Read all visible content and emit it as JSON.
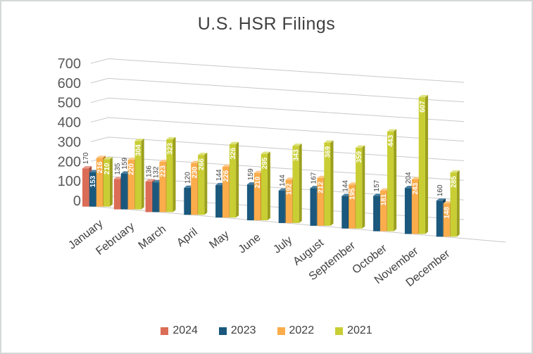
{
  "chart_data": {
    "type": "bar",
    "variant": "3d-clustered-column",
    "title": "U.S. HSR Filings",
    "categories": [
      "January",
      "February",
      "March",
      "April",
      "May",
      "June",
      "July",
      "August",
      "September",
      "October",
      "November",
      "December"
    ],
    "series": [
      {
        "name": "2024",
        "color": "#DB6C56",
        "color_dark": "#A74C3B",
        "color_light": "#E79C8B",
        "values": [
          170,
          135,
          136,
          null,
          null,
          null,
          null,
          null,
          null,
          null,
          null,
          null
        ]
      },
      {
        "name": "2023",
        "color": "#1A587D",
        "color_dark": "#123F5B",
        "color_light": "#4C81A0",
        "values": [
          153,
          159,
          132,
          120,
          144,
          159,
          144,
          167,
          144,
          157,
          204,
          160
        ]
      },
      {
        "name": "2022",
        "color": "#FBAC4B",
        "color_dark": "#C07A22",
        "color_light": "#FDC98A",
        "values": [
          216,
          220,
          223,
          230,
          226,
          210,
          192,
          212,
          195,
          181,
          243,
          148
        ]
      },
      {
        "name": "2021",
        "color": "#C8CE33",
        "color_dark": "#9B9F1E",
        "color_light": "#DEE27E",
        "values": [
          210,
          304,
          323,
          266,
          326,
          295,
          343,
          369,
          359,
          443,
          607,
          285
        ]
      }
    ],
    "y_axis": {
      "min": 0,
      "max": 700,
      "step": 100,
      "tick_labels": [
        "0",
        "100",
        "200",
        "300",
        "400",
        "500",
        "600",
        "700"
      ]
    },
    "legend_position": "bottom",
    "gridlines": true,
    "text_colors": {
      "axis_tick": "#595959",
      "category_label": "#404040",
      "data_label_outside": "#404040",
      "data_label_inside": "#ffffff"
    },
    "gridline_color": "#c9c9c9"
  }
}
